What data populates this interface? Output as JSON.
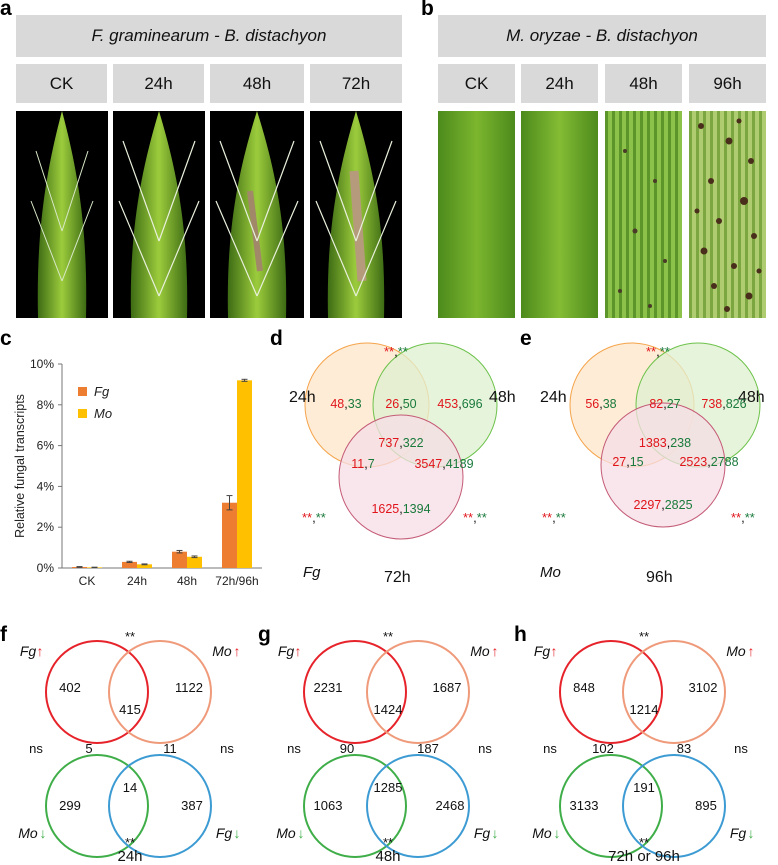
{
  "panel_a": {
    "label": "a",
    "title": "F. graminearum - B. distachyon",
    "timepoints": [
      "CK",
      "24h",
      "48h",
      "72h"
    ]
  },
  "panel_b": {
    "label": "b",
    "title": "M. oryzae - B. distachyon",
    "timepoints": [
      "CK",
      "24h",
      "48h",
      "96h"
    ]
  },
  "panel_c": {
    "label": "c",
    "chart_data": {
      "type": "bar",
      "categories": [
        "CK",
        "24h",
        "48h",
        "72h/96h"
      ],
      "series": [
        {
          "name": "Fg",
          "values": [
            0.05,
            0.3,
            0.8,
            3.2
          ],
          "errors": [
            0.02,
            0.03,
            0.06,
            0.35
          ]
        },
        {
          "name": "Mo",
          "values": [
            0.03,
            0.18,
            0.55,
            9.2
          ],
          "errors": [
            0.01,
            0.02,
            0.04,
            0.05
          ]
        }
      ],
      "ylabel": "Relative fungal transcripts",
      "yticks": [
        "0%",
        "2%",
        "4%",
        "6%",
        "8%",
        "10%"
      ],
      "ylim": [
        0,
        10
      ],
      "colors": {
        "Fg": "#ed7d31",
        "Mo": "#ffc000"
      },
      "legend": "top-left"
    }
  },
  "panel_d": {
    "label": "d",
    "species": "Fg",
    "labels": {
      "left": "24h",
      "right": "48h",
      "bottom": "72h"
    },
    "regions": {
      "a_only": {
        "up": "48",
        "down": "33"
      },
      "ab": {
        "up": "26",
        "down": "50"
      },
      "b_only": {
        "up": "453",
        "down": "696"
      },
      "abc": {
        "up": "737",
        "down": "322"
      },
      "ac": {
        "up": "11",
        "down": "7"
      },
      "bc": {
        "up": "3547",
        "down": "4189"
      },
      "c_only": {
        "up": "1625",
        "down": "1394"
      }
    },
    "sig": "**"
  },
  "panel_e": {
    "label": "e",
    "species": "Mo",
    "labels": {
      "left": "24h",
      "right": "48h",
      "bottom": "96h"
    },
    "regions": {
      "a_only": {
        "up": "56",
        "down": "38"
      },
      "ab": {
        "up": "82",
        "down": "27"
      },
      "b_only": {
        "up": "738",
        "down": "826"
      },
      "abc": {
        "up": "1383",
        "down": "238"
      },
      "ac": {
        "up": "27",
        "down": "15"
      },
      "bc": {
        "up": "2523",
        "down": "2788"
      },
      "c_only": {
        "up": "2297",
        "down": "2825"
      }
    },
    "sig": "**"
  },
  "panels_fgh": [
    {
      "label": "f",
      "time": "24h",
      "tl": "402",
      "tr": "1122",
      "bl": "299",
      "br": "387",
      "top": "415",
      "left": "5",
      "right": "11",
      "bottom": "14"
    },
    {
      "label": "g",
      "time": "48h",
      "tl": "2231",
      "tr": "1687",
      "bl": "1063",
      "br": "2468",
      "top": "1424",
      "left": "90",
      "right": "187",
      "bottom": "1285"
    },
    {
      "label": "h",
      "time": "72h or 96h",
      "tl": "848",
      "tr": "3102",
      "bl": "3133",
      "br": "895",
      "top": "1214",
      "left": "102",
      "right": "83",
      "bottom": "191"
    }
  ],
  "fgh_common": {
    "fg": "Fg",
    "mo": "Mo",
    "up_arrow": "↑",
    "down_arrow": "↓",
    "sig": "**",
    "ns": "ns"
  },
  "colors": {
    "red_text": "#e0151b",
    "green_text": "#1a7a3c",
    "circle_red": "#e6232a",
    "circle_salmon": "#ef9a7a",
    "circle_green": "#3fae49",
    "circle_blue": "#3d9bd3",
    "venn_orange": "#f5a34a",
    "venn_green": "#6cc24a",
    "venn_pink": "#c45a76"
  }
}
